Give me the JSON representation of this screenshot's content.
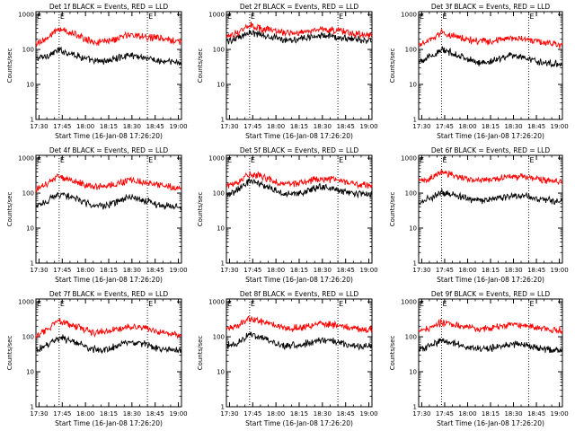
{
  "figure": {
    "background": "#ffffff",
    "axis_color": "#000000",
    "events_color": "#000000",
    "lld_color": "#ff0000"
  },
  "chart_data": [
    {
      "type": "line",
      "title": "Det 1f BLACK = Events, RED = LLD",
      "xlabel": "Start Time (16-Jan-08 17:26:20)",
      "ylabel": "Counts/sec",
      "yscale": "log",
      "ylim": [
        1,
        1200
      ],
      "xlim": [
        "17:28",
        "19:02"
      ],
      "x_ticks": [
        "17:30",
        "17:45",
        "18:00",
        "18:15",
        "18:30",
        "18:45",
        "19:00"
      ],
      "y_ticks": [
        "1",
        "10",
        "100",
        "1000"
      ],
      "markers": [
        "17:43",
        "18:40"
      ],
      "marker_labels": [
        "E",
        "E"
      ],
      "x": [
        "17:28",
        "17:35",
        "17:43",
        "17:52",
        "18:05",
        "18:15",
        "18:28",
        "18:38",
        "18:48",
        "19:02"
      ],
      "series": [
        {
          "values": [
            55,
            65,
            95,
            75,
            45,
            48,
            70,
            60,
            45,
            42
          ]
        },
        {
          "values": [
            150,
            200,
            400,
            280,
            160,
            170,
            260,
            240,
            200,
            170
          ]
        }
      ]
    },
    {
      "type": "line",
      "title": "Det 2f BLACK = Events, RED = LLD",
      "xlabel": "Start Time (16-Jan-08 17:26:20)",
      "ylabel": "Counts/sec",
      "yscale": "log",
      "ylim": [
        1,
        1200
      ],
      "xlim": [
        "17:28",
        "19:02"
      ],
      "x_ticks": [
        "17:30",
        "17:45",
        "18:00",
        "18:15",
        "18:30",
        "18:45",
        "19:00"
      ],
      "y_ticks": [
        "1",
        "10",
        "100",
        "1000"
      ],
      "markers": [
        "17:43",
        "18:40"
      ],
      "marker_labels": [
        "E",
        "E"
      ],
      "x": [
        "17:28",
        "17:35",
        "17:43",
        "17:52",
        "18:05",
        "18:15",
        "18:28",
        "18:38",
        "18:48",
        "19:02"
      ],
      "series": [
        {
          "values": [
            170,
            210,
            310,
            250,
            195,
            195,
            250,
            230,
            200,
            180
          ]
        },
        {
          "values": [
            240,
            300,
            490,
            380,
            300,
            310,
            370,
            360,
            290,
            250
          ]
        }
      ]
    },
    {
      "type": "line",
      "title": "Det 3f BLACK = Events, RED = LLD",
      "xlabel": "Start Time (16-Jan-08 17:26:20)",
      "ylabel": "Counts/sec",
      "yscale": "log",
      "ylim": [
        1,
        1200
      ],
      "xlim": [
        "17:28",
        "19:02"
      ],
      "x_ticks": [
        "17:30",
        "17:45",
        "18:00",
        "18:15",
        "18:30",
        "18:45",
        "19:00"
      ],
      "y_ticks": [
        "1",
        "10",
        "100",
        "1000"
      ],
      "markers": [
        "17:43",
        "18:40"
      ],
      "marker_labels": [
        "E",
        "E"
      ],
      "x": [
        "17:28",
        "17:35",
        "17:43",
        "17:52",
        "18:05",
        "18:15",
        "18:28",
        "18:38",
        "18:48",
        "19:02"
      ],
      "series": [
        {
          "values": [
            48,
            60,
            95,
            75,
            42,
            45,
            70,
            58,
            42,
            38
          ]
        },
        {
          "values": [
            130,
            180,
            300,
            230,
            170,
            170,
            210,
            200,
            160,
            130
          ]
        }
      ]
    },
    {
      "type": "line",
      "title": "Det 4f BLACK = Events, RED = LLD",
      "xlabel": "Start Time (16-Jan-08 17:26:20)",
      "ylabel": "Counts/sec",
      "yscale": "log",
      "ylim": [
        1,
        1200
      ],
      "xlim": [
        "17:28",
        "19:02"
      ],
      "x_ticks": [
        "17:30",
        "17:45",
        "18:00",
        "18:15",
        "18:30",
        "18:45",
        "19:00"
      ],
      "y_ticks": [
        "1",
        "10",
        "100",
        "1000"
      ],
      "markers": [
        "17:43",
        "18:40"
      ],
      "marker_labels": [
        "E",
        "E"
      ],
      "x": [
        "17:28",
        "17:35",
        "17:43",
        "17:52",
        "18:05",
        "18:15",
        "18:28",
        "18:38",
        "18:48",
        "19:02"
      ],
      "series": [
        {
          "values": [
            40,
            60,
            95,
            75,
            42,
            45,
            75,
            62,
            45,
            40
          ]
        },
        {
          "values": [
            130,
            180,
            300,
            230,
            150,
            160,
            230,
            210,
            160,
            135
          ]
        }
      ]
    },
    {
      "type": "line",
      "title": "Det 5f BLACK = Events, RED = LLD",
      "xlabel": "Start Time (16-Jan-08 17:26:20)",
      "ylabel": "Counts/sec",
      "yscale": "log",
      "ylim": [
        1,
        1200
      ],
      "xlim": [
        "17:28",
        "19:02"
      ],
      "x_ticks": [
        "17:30",
        "17:45",
        "18:00",
        "18:15",
        "18:30",
        "18:45",
        "19:00"
      ],
      "y_ticks": [
        "1",
        "10",
        "100",
        "1000"
      ],
      "markers": [
        "17:43",
        "18:40"
      ],
      "marker_labels": [
        "E",
        "E"
      ],
      "x": [
        "17:28",
        "17:35",
        "17:43",
        "17:52",
        "18:05",
        "18:15",
        "18:28",
        "18:38",
        "18:48",
        "19:02"
      ],
      "series": [
        {
          "values": [
            85,
            120,
            230,
            170,
            95,
            100,
            150,
            130,
            100,
            90
          ]
        },
        {
          "values": [
            160,
            210,
            370,
            280,
            180,
            185,
            260,
            240,
            190,
            165
          ]
        }
      ]
    },
    {
      "type": "line",
      "title": "Det 6f BLACK = Events, RED = LLD",
      "xlabel": "Start Time (16-Jan-08 17:26:20)",
      "ylabel": "Counts/sec",
      "yscale": "log",
      "ylim": [
        1,
        1200
      ],
      "xlim": [
        "17:28",
        "19:02"
      ],
      "x_ticks": [
        "17:30",
        "17:45",
        "18:00",
        "18:15",
        "18:30",
        "18:45",
        "19:00"
      ],
      "y_ticks": [
        "1",
        "10",
        "100",
        "1000"
      ],
      "markers": [
        "17:43",
        "18:40"
      ],
      "marker_labels": [
        "E",
        "E"
      ],
      "x": [
        "17:28",
        "17:35",
        "17:43",
        "17:52",
        "18:05",
        "18:15",
        "18:28",
        "18:38",
        "18:48",
        "19:02"
      ],
      "series": [
        {
          "values": [
            55,
            70,
            105,
            85,
            62,
            64,
            85,
            80,
            65,
            55
          ]
        },
        {
          "values": [
            210,
            260,
            400,
            320,
            230,
            240,
            300,
            290,
            240,
            210
          ]
        }
      ]
    },
    {
      "type": "line",
      "title": "Det 7f BLACK = Events, RED = LLD",
      "xlabel": "Start Time (16-Jan-08 17:26:20)",
      "ylabel": "Counts/sec",
      "yscale": "log",
      "ylim": [
        1,
        1200
      ],
      "xlim": [
        "17:28",
        "19:02"
      ],
      "x_ticks": [
        "17:30",
        "17:45",
        "18:00",
        "18:15",
        "18:30",
        "18:45",
        "19:00"
      ],
      "y_ticks": [
        "1",
        "10",
        "100",
        "1000"
      ],
      "markers": [
        "17:43",
        "18:40"
      ],
      "marker_labels": [
        "E",
        "E"
      ],
      "x": [
        "17:28",
        "17:35",
        "17:43",
        "17:52",
        "18:05",
        "18:15",
        "18:28",
        "18:38",
        "18:48",
        "19:02"
      ],
      "series": [
        {
          "values": [
            42,
            60,
            95,
            75,
            42,
            44,
            70,
            62,
            45,
            40
          ]
        },
        {
          "values": [
            110,
            160,
            280,
            210,
            130,
            140,
            200,
            180,
            130,
            110
          ]
        }
      ]
    },
    {
      "type": "line",
      "title": "Det 8f BLACK = Events, RED = LLD",
      "xlabel": "Start Time (16-Jan-08 17:26:20)",
      "ylabel": "Counts/sec",
      "yscale": "log",
      "ylim": [
        1,
        1200
      ],
      "xlim": [
        "17:28",
        "19:02"
      ],
      "x_ticks": [
        "17:30",
        "17:45",
        "18:00",
        "18:15",
        "18:30",
        "18:45",
        "19:00"
      ],
      "y_ticks": [
        "1",
        "10",
        "100",
        "1000"
      ],
      "markers": [
        "17:43",
        "18:40"
      ],
      "marker_labels": [
        "E",
        "E"
      ],
      "x": [
        "17:28",
        "17:35",
        "17:43",
        "17:52",
        "18:05",
        "18:15",
        "18:28",
        "18:38",
        "18:48",
        "19:02"
      ],
      "series": [
        {
          "values": [
            55,
            70,
            115,
            90,
            55,
            58,
            80,
            72,
            55,
            52
          ]
        },
        {
          "values": [
            170,
            210,
            340,
            260,
            180,
            180,
            240,
            220,
            180,
            160
          ]
        }
      ]
    },
    {
      "type": "line",
      "title": "Det 9f BLACK = Events, RED = LLD",
      "xlabel": "Start Time (16-Jan-08 17:26:20)",
      "ylabel": "Counts/sec",
      "yscale": "log",
      "ylim": [
        1,
        1200
      ],
      "xlim": [
        "17:28",
        "19:02"
      ],
      "x_ticks": [
        "17:30",
        "17:45",
        "18:00",
        "18:15",
        "18:30",
        "18:45",
        "19:00"
      ],
      "y_ticks": [
        "1",
        "10",
        "100",
        "1000"
      ],
      "markers": [
        "17:43",
        "18:40"
      ],
      "marker_labels": [
        "E",
        "E"
      ],
      "x": [
        "17:28",
        "17:35",
        "17:43",
        "17:52",
        "18:05",
        "18:15",
        "18:28",
        "18:38",
        "18:48",
        "19:02"
      ],
      "series": [
        {
          "values": [
            42,
            55,
            80,
            65,
            45,
            46,
            62,
            58,
            45,
            40
          ]
        },
        {
          "values": [
            140,
            170,
            260,
            210,
            170,
            175,
            230,
            210,
            170,
            150
          ]
        }
      ]
    }
  ]
}
